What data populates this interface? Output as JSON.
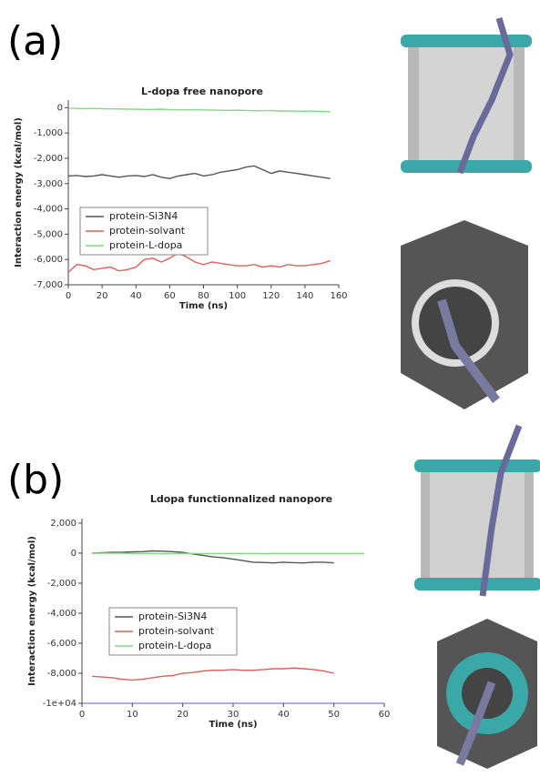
{
  "chart_data": [
    {
      "type": "line",
      "label": "(a)",
      "title": "L-dopa free nanopore",
      "x_label": "Time (ns)",
      "y_label": "Interaction energy (kcal/mol)",
      "xlim": [
        0,
        160
      ],
      "xticks": [
        0,
        20,
        40,
        60,
        80,
        100,
        120,
        140,
        160
      ],
      "ylim": [
        -7000,
        300
      ],
      "yticks": [
        0,
        {
          "value": -1000,
          "label": "-1,000"
        },
        {
          "value": -2000,
          "label": "-2,000"
        },
        {
          "value": -3000,
          "label": "-3,000"
        },
        {
          "value": -4000,
          "label": "-4,000"
        },
        {
          "value": -5000,
          "label": "-5,000"
        },
        {
          "value": -6000,
          "label": "-6,000"
        },
        {
          "value": -7000,
          "label": "-7,000"
        }
      ],
      "legend": "center-left",
      "x": [
        0,
        5,
        10,
        15,
        20,
        25,
        30,
        35,
        40,
        45,
        50,
        55,
        60,
        65,
        70,
        75,
        80,
        85,
        90,
        95,
        100,
        105,
        110,
        115,
        120,
        125,
        130,
        135,
        140,
        145,
        150,
        155
      ],
      "series": [
        {
          "name": "protein-Si3N4",
          "color": "#555555",
          "values": [
            -2700,
            -2680,
            -2720,
            -2700,
            -2650,
            -2700,
            -2750,
            -2700,
            -2680,
            -2720,
            -2650,
            -2750,
            -2800,
            -2700,
            -2650,
            -2600,
            -2700,
            -2650,
            -2550,
            -2500,
            -2450,
            -2350,
            -2300,
            -2450,
            -2600,
            -2500,
            -2550,
            -2600,
            -2650,
            -2700,
            -2750,
            -2800
          ]
        },
        {
          "name": "protein-solvant",
          "color": "#e0605a",
          "values": [
            -6500,
            -6200,
            -6250,
            -6400,
            -6350,
            -6300,
            -6450,
            -6400,
            -6300,
            -6000,
            -5950,
            -6100,
            -5950,
            -5750,
            -5900,
            -6100,
            -6200,
            -6100,
            -6150,
            -6200,
            -6250,
            -6250,
            -6200,
            -6300,
            -6250,
            -6300,
            -6200,
            -6250,
            -6250,
            -6200,
            -6150,
            -6050
          ]
        },
        {
          "name": "protein-L-dopa",
          "color": "#7fdc7f",
          "values": [
            -20,
            -30,
            -40,
            -30,
            -40,
            -50,
            -50,
            -60,
            -60,
            -70,
            -70,
            -60,
            -80,
            -80,
            -90,
            -80,
            -90,
            -100,
            -100,
            -110,
            -100,
            -110,
            -120,
            -120,
            -110,
            -130,
            -130,
            -140,
            -140,
            -140,
            -150,
            -160
          ]
        }
      ]
    },
    {
      "type": "line",
      "label": "(b)",
      "title": "Ldopa functionnalized nanopore",
      "x_label": "Time (ns)",
      "y_label": "Interaction energy (kcal/mol)",
      "xlim": [
        0,
        60
      ],
      "xticks": [
        0,
        10,
        20,
        30,
        40,
        50,
        60
      ],
      "ylim": [
        -10000,
        2300
      ],
      "yticks": [
        {
          "value": 2000,
          "label": "2,000"
        },
        0,
        {
          "value": -2000,
          "label": "-2,000"
        },
        {
          "value": -4000,
          "label": "-4,000"
        },
        {
          "value": -6000,
          "label": "-6,000"
        },
        {
          "value": -8000,
          "label": "-8,000"
        },
        {
          "value": -10000,
          "label": "-1e+04"
        }
      ],
      "legend": "center-left",
      "x": [
        2,
        4,
        6,
        8,
        10,
        12,
        14,
        16,
        18,
        20,
        22,
        24,
        26,
        28,
        30,
        32,
        34,
        36,
        38,
        40,
        42,
        44,
        46,
        48,
        50,
        52,
        54,
        56
      ],
      "series": [
        {
          "name": "protein-Si3N4",
          "color": "#555555",
          "values": [
            0,
            30,
            50,
            60,
            80,
            100,
            150,
            130,
            100,
            50,
            -50,
            -150,
            -250,
            -300,
            -400,
            -500,
            -600,
            -620,
            -650,
            -600,
            -630,
            -650,
            -600,
            -600,
            -650,
            null,
            null,
            null
          ]
        },
        {
          "name": "protein-solvant",
          "color": "#e0605a",
          "values": [
            -8200,
            -8250,
            -8300,
            -8400,
            -8450,
            -8400,
            -8300,
            -8200,
            -8150,
            -8000,
            -7950,
            -7850,
            -7800,
            -7800,
            -7750,
            -7800,
            -7800,
            -7750,
            -7700,
            -7700,
            -7650,
            -7700,
            -7750,
            -7850,
            -8000,
            null,
            null,
            null
          ]
        },
        {
          "name": "protein-L-dopa",
          "color": "#7fdc7f",
          "values": [
            0,
            0,
            -10,
            -10,
            -20,
            -20,
            -20,
            -30,
            -20,
            -20,
            -20,
            -30,
            -20,
            -20,
            -20,
            -20,
            -20,
            -30,
            -20,
            -20,
            -20,
            -20,
            -20,
            -20,
            -20,
            -20,
            -20,
            -20
          ]
        }
      ]
    }
  ]
}
